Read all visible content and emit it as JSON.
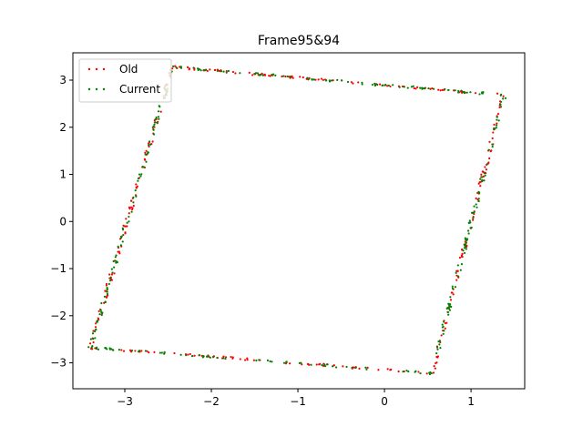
{
  "chart_data": {
    "type": "scatter",
    "title": "Frame95&94",
    "xlabel": "",
    "ylabel": "",
    "xlim": [
      -3.6,
      1.62
    ],
    "ylim": [
      -3.55,
      3.58
    ],
    "xticks": [
      -3,
      -2,
      -1,
      0,
      1
    ],
    "yticks": [
      -3,
      -2,
      -1,
      0,
      1,
      2,
      3
    ],
    "xtick_labels": [
      "−3",
      "−2",
      "−1",
      "0",
      "1"
    ],
    "ytick_labels": [
      "−3",
      "−2",
      "−1",
      "0",
      "1",
      "2",
      "3"
    ],
    "grid": false,
    "legend_position": "top-left",
    "series": [
      {
        "name": "Old",
        "color": "#ff0000",
        "shape": {
          "corners": [
            [
              -3.4,
              -2.68
            ],
            [
              0.55,
              -3.22
            ],
            [
              1.38,
              2.68
            ],
            [
              -2.45,
              3.28
            ]
          ],
          "sides": [
            {
              "from": 0,
              "to": 1,
              "count": 70
            },
            {
              "from": 1,
              "to": 2,
              "count": 90
            },
            {
              "from": 2,
              "to": 3,
              "count": 85
            },
            {
              "from": 3,
              "to": 0,
              "count": 95
            }
          ],
          "noise": 0.025
        }
      },
      {
        "name": "Current",
        "color": "#008000",
        "shape": {
          "corners": [
            [
              -3.4,
              -2.68
            ],
            [
              0.55,
              -3.22
            ],
            [
              1.38,
              2.68
            ],
            [
              -2.45,
              3.28
            ]
          ],
          "sides": [
            {
              "from": 0,
              "to": 1,
              "count": 70
            },
            {
              "from": 1,
              "to": 2,
              "count": 90
            },
            {
              "from": 2,
              "to": 3,
              "count": 85
            },
            {
              "from": 3,
              "to": 0,
              "count": 95
            }
          ],
          "noise": 0.025
        }
      }
    ]
  }
}
